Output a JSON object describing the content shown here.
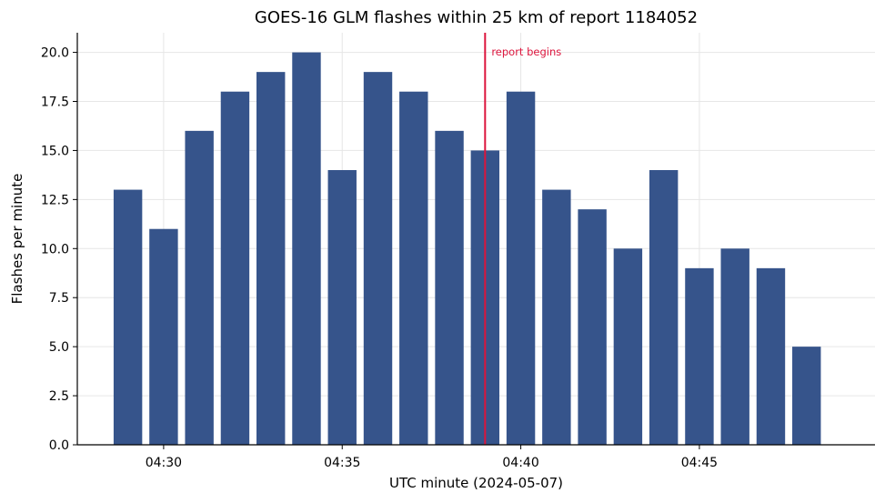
{
  "chart_data": {
    "type": "bar",
    "title": "GOES-16 GLM flashes within 25 km of report 1184052",
    "xlabel": "UTC minute (2024-05-07)",
    "ylabel": "Flashes per minute",
    "categories": [
      "04:29",
      "04:30",
      "04:31",
      "04:32",
      "04:33",
      "04:34",
      "04:35",
      "04:36",
      "04:37",
      "04:38",
      "04:39",
      "04:40",
      "04:41",
      "04:42",
      "04:43",
      "04:44",
      "04:45",
      "04:46",
      "04:47",
      "04:48"
    ],
    "values": [
      13,
      11,
      16,
      18,
      19,
      20,
      14,
      19,
      18,
      16,
      15,
      18,
      13,
      12,
      10,
      14,
      9,
      10,
      9,
      5
    ],
    "ylim": [
      0,
      21
    ],
    "xlim": [
      "04:27:35",
      "04:49:55"
    ],
    "yticks": [
      "0.0",
      "2.5",
      "5.0",
      "7.5",
      "10.0",
      "12.5",
      "15.0",
      "17.5",
      "20.0"
    ],
    "xticks": [
      "04:30",
      "04:35",
      "04:40",
      "04:45"
    ],
    "grid": true,
    "bar_color": "#36548b",
    "annotation": {
      "x": "04:39:00",
      "label": "report begins",
      "color": "#dc143c"
    }
  }
}
